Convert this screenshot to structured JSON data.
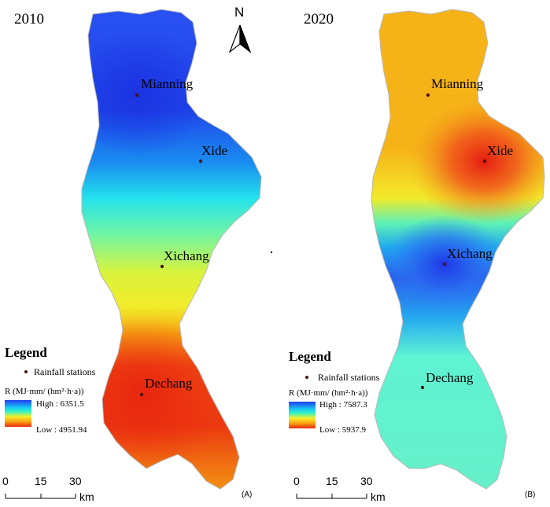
{
  "panel_a": {
    "year": "2010",
    "tag": "(A)",
    "stations": [
      {
        "name": "Mianning"
      },
      {
        "name": "Xide"
      },
      {
        "name": "Xichang"
      },
      {
        "name": "Dechang"
      }
    ],
    "legend": {
      "title": "Legend",
      "station_label": "Rainfall stations",
      "r_label": "R (MJ·mm/ (hm²·h·a))",
      "high": "High : 6351.5",
      "low": "Low : 4951.94"
    },
    "scale": {
      "ticks": [
        "0",
        "15",
        "30"
      ],
      "unit": "km"
    }
  },
  "panel_b": {
    "year": "2020",
    "tag": "(B)",
    "stations": [
      {
        "name": "Mianning"
      },
      {
        "name": "Xide"
      },
      {
        "name": "Xichang"
      },
      {
        "name": "Dechang"
      }
    ],
    "legend": {
      "title": "Legend",
      "station_label": "Rainfall stations",
      "r_label": "R (MJ·mm/ (hm²·h·a))",
      "high": "High : 7587.3",
      "low": "Low : 5937.9"
    },
    "scale": {
      "ticks": [
        "0",
        "15",
        "30"
      ],
      "unit": "km"
    }
  },
  "north_arrow": "N",
  "colors": {
    "high": "#1f3ef0",
    "mid_high": "#17c9f2",
    "mid": "#2ff3c9",
    "mid_low": "#f6f02a",
    "low_mid": "#f9a512",
    "low": "#ec2a10"
  }
}
